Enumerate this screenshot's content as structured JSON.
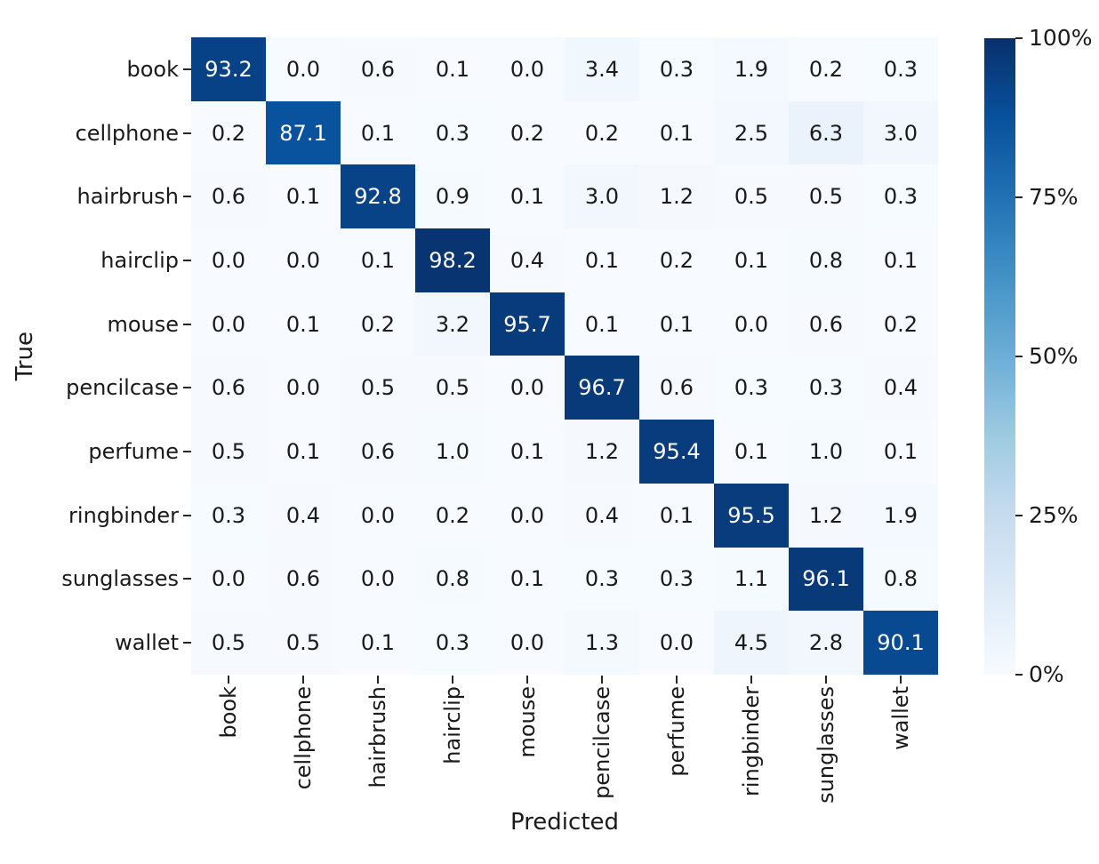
{
  "figure": {
    "background": "#ffffff"
  },
  "chart_data": {
    "type": "heatmap",
    "title": "",
    "xlabel": "Predicted",
    "ylabel": "True",
    "categories": [
      "book",
      "cellphone",
      "hairbrush",
      "hairclip",
      "mouse",
      "pencilcase",
      "perfume",
      "ringbinder",
      "sunglasses",
      "wallet"
    ],
    "matrix": [
      [
        93.2,
        0.0,
        0.6,
        0.1,
        0.0,
        3.4,
        0.3,
        1.9,
        0.2,
        0.3
      ],
      [
        0.2,
        87.1,
        0.1,
        0.3,
        0.2,
        0.2,
        0.1,
        2.5,
        6.3,
        3.0
      ],
      [
        0.6,
        0.1,
        92.8,
        0.9,
        0.1,
        3.0,
        1.2,
        0.5,
        0.5,
        0.3
      ],
      [
        0.0,
        0.0,
        0.1,
        98.2,
        0.4,
        0.1,
        0.2,
        0.1,
        0.8,
        0.1
      ],
      [
        0.0,
        0.1,
        0.2,
        3.2,
        95.7,
        0.1,
        0.1,
        0.0,
        0.6,
        0.2
      ],
      [
        0.6,
        0.0,
        0.5,
        0.5,
        0.0,
        96.7,
        0.6,
        0.3,
        0.3,
        0.4
      ],
      [
        0.5,
        0.1,
        0.6,
        1.0,
        0.1,
        1.2,
        95.4,
        0.1,
        1.0,
        0.1
      ],
      [
        0.3,
        0.4,
        0.0,
        0.2,
        0.0,
        0.4,
        0.1,
        95.5,
        1.2,
        1.9
      ],
      [
        0.0,
        0.6,
        0.0,
        0.8,
        0.1,
        0.3,
        0.3,
        1.1,
        96.1,
        0.8
      ],
      [
        0.5,
        0.5,
        0.1,
        0.3,
        0.0,
        1.3,
        0.0,
        4.5,
        2.8,
        90.1
      ]
    ],
    "value_decimals": 1,
    "vmin": 0,
    "vmax": 100,
    "colorbar": {
      "tick_labels": [
        "100%",
        "75%",
        "50%",
        "25%",
        "0%"
      ],
      "tick_values": [
        100,
        75,
        50,
        25,
        0
      ],
      "position": "right"
    },
    "colormap": {
      "name": "Blues",
      "anchors": [
        "#f7fbff",
        "#deebf7",
        "#c6dbef",
        "#9ecae1",
        "#6baed6",
        "#4292c6",
        "#2171b5",
        "#08519c",
        "#08306b"
      ]
    },
    "annotation_colors": {
      "light_cell_text": "#1a1a1a",
      "dark_cell_text": "#ffffff"
    },
    "tick_color": "#262626",
    "grid": false,
    "legend_position": "none"
  }
}
